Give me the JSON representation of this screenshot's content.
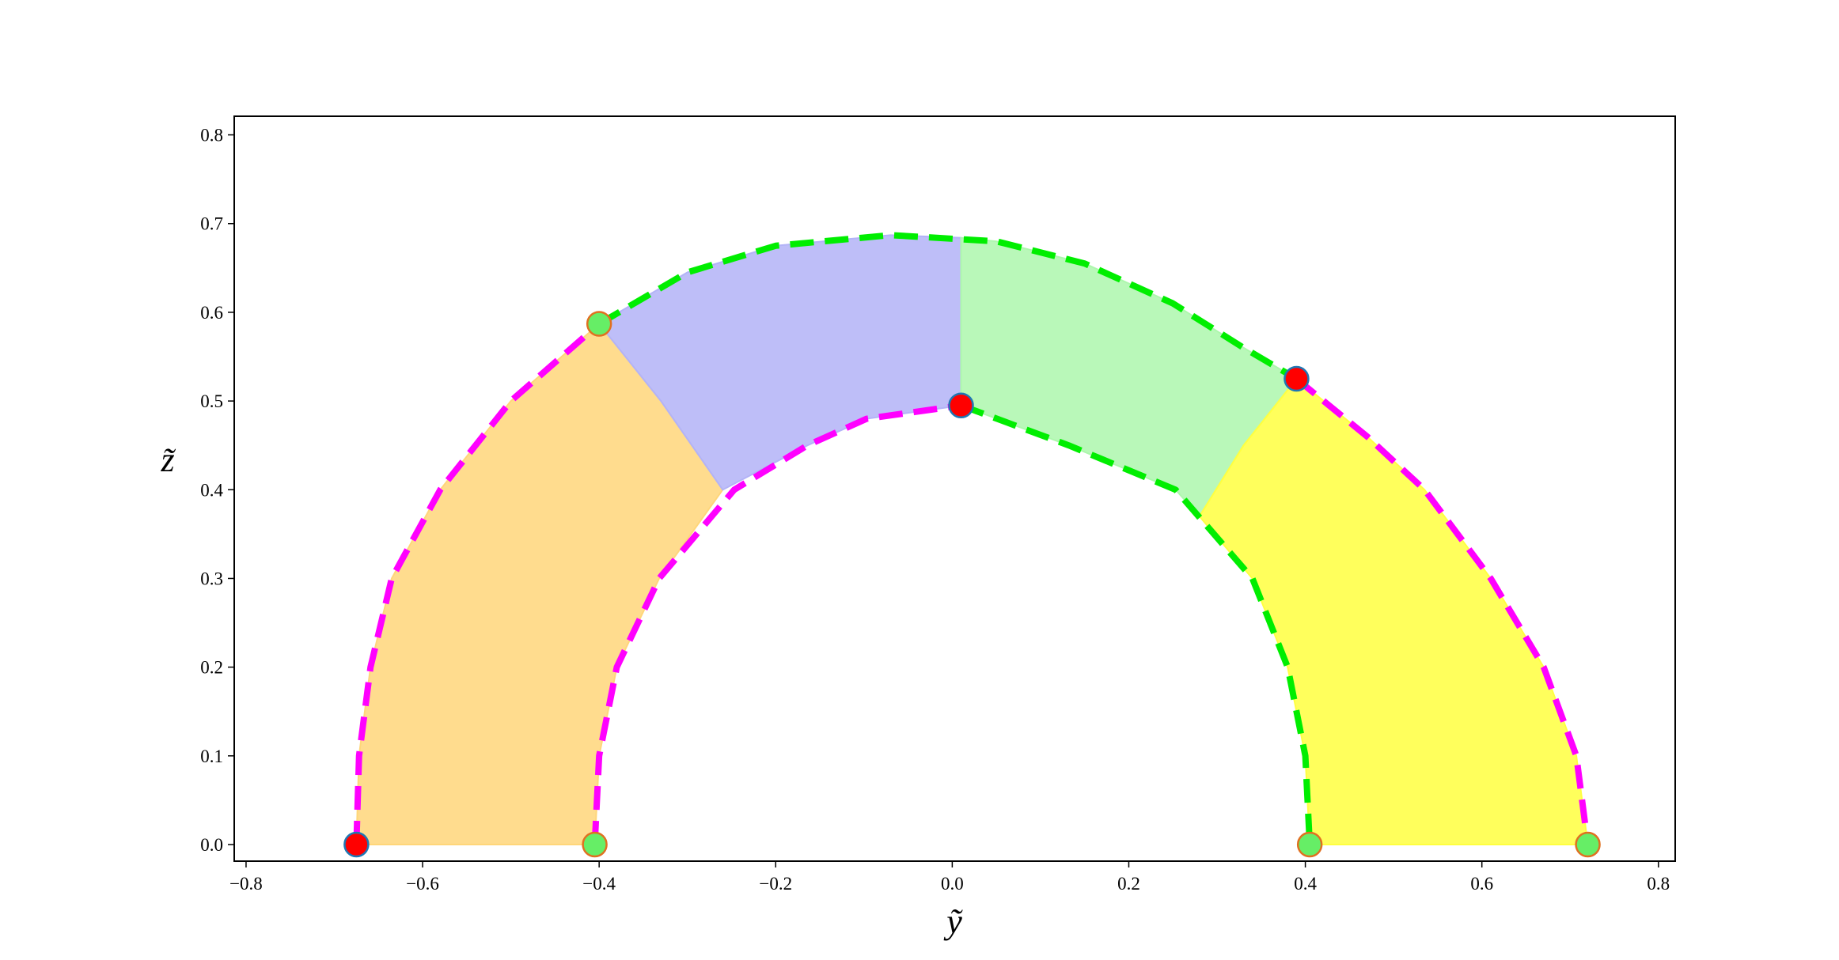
{
  "chart_data": {
    "type": "region",
    "xlabel": "ỹ",
    "ylabel": "z̃",
    "xlim": [
      -0.8134,
      0.819
    ],
    "ylim": [
      -0.0187,
      0.821
    ],
    "xticks": [
      {
        "value": -0.8,
        "label": "−0.8"
      },
      {
        "value": -0.6,
        "label": "−0.6"
      },
      {
        "value": -0.4,
        "label": "−0.4"
      },
      {
        "value": -0.2,
        "label": "−0.2"
      },
      {
        "value": 0,
        "label": "0.0"
      },
      0.2,
      0.4,
      0.6,
      0.8
    ],
    "yticks": [
      {
        "value": 0,
        "label": "0.0"
      },
      0.1,
      0.2,
      0.3,
      0.4,
      0.5,
      0.6,
      0.7,
      0.8
    ],
    "regions": [
      {
        "color": "#ffd67a",
        "x": [
          -0.675,
          -0.672,
          -0.659,
          -0.635,
          -0.58,
          -0.5,
          -0.4,
          -0.33,
          -0.26,
          -0.332,
          -0.38,
          -0.4,
          -0.405
        ],
        "y": [
          0,
          0.1,
          0.2,
          0.3,
          0.4,
          0.5,
          0.587,
          0.5,
          0.4,
          0.3,
          0.2,
          0.1,
          0
        ]
      },
      {
        "color": "#b3b3f7",
        "x": [
          -0.4,
          -0.3,
          -0.2,
          -0.07,
          0.01,
          0.01,
          -0.097,
          -0.164,
          -0.26,
          -0.33
        ],
        "y": [
          0.587,
          0.645,
          0.675,
          0.687,
          0.684,
          0.495,
          0.48,
          0.45,
          0.4,
          0.5
        ]
      },
      {
        "color": "#adf7ad",
        "x": [
          0.01,
          0.05,
          0.15,
          0.25,
          0.33,
          0.39,
          0.33,
          0.28,
          0.253,
          0.132,
          0.01
        ],
        "y": [
          0.684,
          0.68,
          0.655,
          0.61,
          0.56,
          0.525,
          0.45,
          0.37,
          0.4,
          0.45,
          0.495
        ]
      },
      {
        "color": "#ffff40",
        "x": [
          0.39,
          0.47,
          0.535,
          0.61,
          0.67,
          0.707,
          0.72,
          0.405,
          0.4,
          0.38,
          0.34,
          0.28,
          0.33
        ],
        "y": [
          0.525,
          0.46,
          0.4,
          0.3,
          0.2,
          0.1,
          0,
          0,
          0.1,
          0.2,
          0.3,
          0.37,
          0.45
        ]
      }
    ],
    "curves": [
      {
        "color": "#ff00ff",
        "x": [
          -0.675,
          -0.672,
          -0.659,
          -0.635,
          -0.58,
          -0.5,
          -0.4
        ],
        "y": [
          0,
          0.1,
          0.2,
          0.3,
          0.4,
          0.5,
          0.587
        ]
      },
      {
        "color": "#00ee00",
        "x": [
          -0.4,
          -0.3,
          -0.2,
          -0.07,
          0.05,
          0.15,
          0.25,
          0.33,
          0.39
        ],
        "y": [
          0.587,
          0.645,
          0.675,
          0.687,
          0.68,
          0.655,
          0.61,
          0.56,
          0.525
        ]
      },
      {
        "color": "#ff00ff",
        "x": [
          0.39,
          0.47,
          0.535,
          0.61,
          0.67,
          0.707,
          0.72
        ],
        "y": [
          0.525,
          0.46,
          0.4,
          0.3,
          0.2,
          0.1,
          0
        ]
      },
      {
        "color": "#ff00ff",
        "x": [
          -0.405,
          -0.4,
          -0.38,
          -0.332,
          -0.247,
          -0.164,
          -0.097,
          0.01
        ],
        "y": [
          0,
          0.1,
          0.2,
          0.3,
          0.4,
          0.45,
          0.48,
          0.495
        ]
      },
      {
        "color": "#00ee00",
        "x": [
          0.01,
          0.132,
          0.253,
          0.34,
          0.38,
          0.4,
          0.405
        ],
        "y": [
          0.495,
          0.45,
          0.4,
          0.3,
          0.2,
          0.1,
          0
        ]
      }
    ],
    "points": [
      {
        "color": "#ff0000",
        "edgecolor": "#1f77b4",
        "x": [
          -0.675,
          0.01,
          0.39
        ],
        "y": [
          0,
          0.495,
          0.525
        ]
      },
      {
        "color": "#66ee66",
        "edgecolor": "#e07020",
        "x": [
          -0.4,
          -0.405,
          0.405,
          0.72
        ],
        "y": [
          0.587,
          0,
          0,
          0
        ]
      }
    ]
  }
}
